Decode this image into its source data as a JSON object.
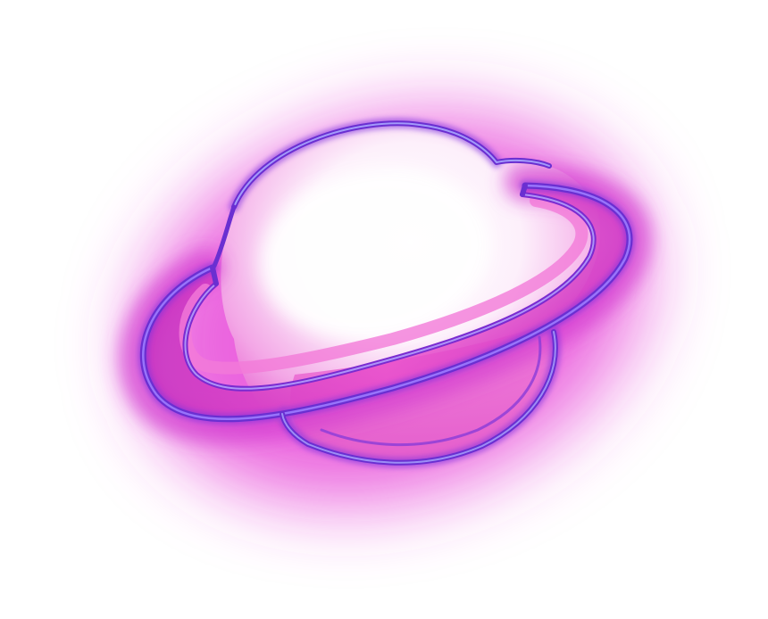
{
  "image": {
    "subject": "neon-planet",
    "colors": {
      "background": "#ffffff",
      "glow": "#e63ad6",
      "outline": "#7a2bd0",
      "highlight": "#a8a0ff",
      "planet_lower": "#e866d2",
      "ring_fill": "#e04ac8",
      "core_white": "#ffffff"
    }
  }
}
